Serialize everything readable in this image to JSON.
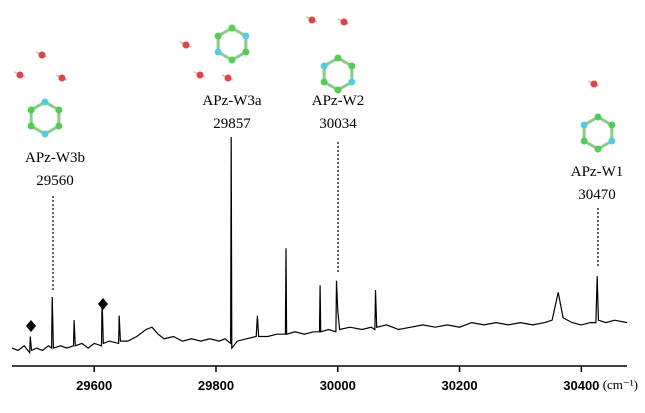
{
  "chart_data": {
    "type": "line",
    "xlabel": "(cm⁻¹)",
    "xlim": [
      29465,
      30475
    ],
    "ylim": [
      0,
      100
    ],
    "xticks": [
      29600,
      29800,
      30000,
      30200,
      30400
    ],
    "annotations": [
      {
        "label": "APz-W3b",
        "value": 29560
      },
      {
        "label": "APz-W3a",
        "value": 29857
      },
      {
        "label": "APz-W2",
        "value": 30034
      },
      {
        "label": "APz-W1",
        "value": 30470
      }
    ],
    "series": [
      {
        "color": "#000000",
        "x": [
          29465,
          29475,
          29485,
          29494,
          29495,
          29497,
          29505,
          29515,
          29525,
          29530,
          29531,
          29533,
          29545,
          29555,
          29566,
          29567,
          29569,
          29580,
          29590,
          29600,
          29612,
          29613,
          29615,
          29625,
          29640,
          29641,
          29643,
          29655,
          29670,
          29685,
          29695,
          29705,
          29715,
          29730,
          29745,
          29760,
          29775,
          29790,
          29805,
          29815,
          29824,
          29825,
          29826,
          29835,
          29850,
          29866,
          29868,
          29870,
          29885,
          29900,
          29914,
          29915,
          29916,
          29930,
          29945,
          29960,
          29970,
          29971,
          29972,
          29985,
          29997,
          29998,
          30000,
          30003,
          30020,
          30040,
          30055,
          30061,
          30062,
          30064,
          30080,
          30100,
          30120,
          30140,
          30160,
          30180,
          30200,
          30220,
          30240,
          30260,
          30280,
          30300,
          30320,
          30340,
          30352,
          30362,
          30370,
          30385,
          30400,
          30415,
          30424,
          30426,
          30428,
          30440,
          30455,
          30475
        ],
        "values": [
          6,
          5,
          7,
          4,
          11,
          5,
          6,
          5,
          7,
          6,
          28,
          6,
          7,
          6,
          7,
          18,
          7,
          8,
          6,
          8,
          7,
          27,
          8,
          9,
          8,
          20,
          9,
          9,
          11,
          14,
          15,
          12,
          10,
          11,
          9,
          10,
          9,
          10,
          9,
          10,
          8,
          97,
          6,
          9,
          10,
          11,
          20,
          11,
          11,
          12,
          12,
          49,
          12,
          13,
          12,
          13,
          13,
          33,
          13,
          14,
          13,
          35,
          22,
          14,
          15,
          14,
          15,
          14,
          31,
          15,
          16,
          14,
          15,
          16,
          15,
          16,
          15,
          17,
          16,
          17,
          16,
          17,
          16,
          17,
          18,
          30,
          19,
          17,
          16,
          17,
          17,
          37,
          18,
          17,
          18,
          17
        ]
      }
    ]
  }
}
